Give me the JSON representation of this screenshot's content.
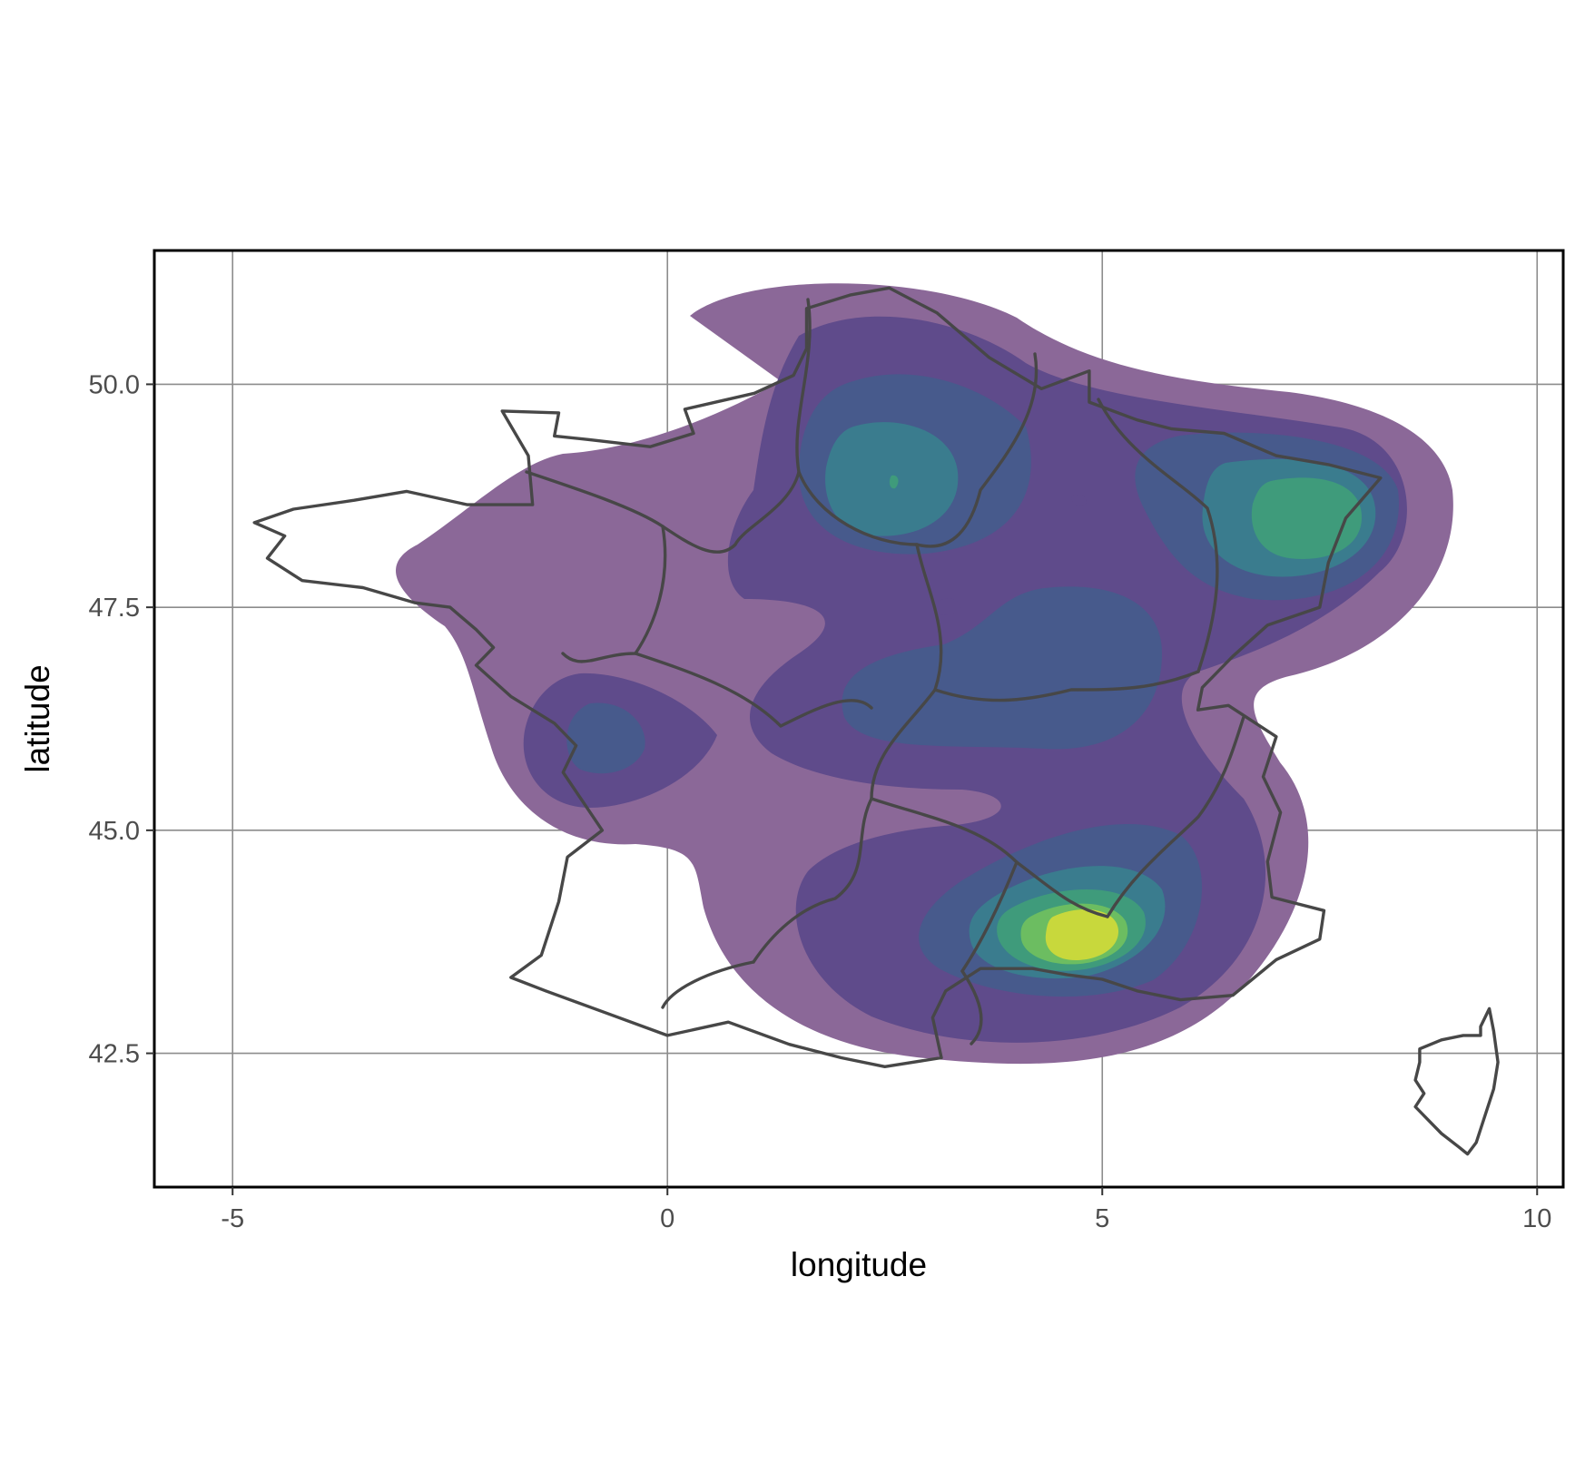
{
  "chart_data": {
    "type": "density-contour-map",
    "title": "",
    "xlabel": "longitude",
    "ylabel": "latitude",
    "xlim": [
      -5.9,
      10.3
    ],
    "ylim": [
      41.0,
      51.5
    ],
    "x_ticks": [
      -5,
      0,
      5,
      10
    ],
    "x_tick_labels": [
      "-5",
      "0",
      "5",
      "10"
    ],
    "y_ticks": [
      42.5,
      45.0,
      47.5,
      50.0
    ],
    "y_tick_labels": [
      "42.5",
      "45.0",
      "47.5",
      "50.0"
    ],
    "grid": true,
    "legend": "none",
    "colors": {
      "palette": [
        "#8b6898",
        "#5f4b8b",
        "#475a8c",
        "#3a7c8e",
        "#3f9b7b",
        "#6cbd61",
        "#c8d83c"
      ],
      "outline": "#474747",
      "panel_border": "#000000",
      "grid": "#8c8c8c"
    },
    "density_peaks": [
      {
        "lon": 4.8,
        "lat": 43.7,
        "levels": 7
      },
      {
        "lon": 7.2,
        "lat": 48.5,
        "levels": 5
      },
      {
        "lon": 2.6,
        "lat": 48.8,
        "levels": 4
      },
      {
        "lon": 4.9,
        "lat": 46.9,
        "levels": 3
      },
      {
        "lon": -0.7,
        "lat": 45.9,
        "levels": 3
      }
    ],
    "outlines": [
      {
        "name": "France mainland",
        "points": [
          [
            2.55,
            51.08
          ],
          [
            2.1,
            51.0
          ],
          [
            1.6,
            50.85
          ],
          [
            1.6,
            50.4
          ],
          [
            1.45,
            50.1
          ],
          [
            1.0,
            49.9
          ],
          [
            0.2,
            49.72
          ],
          [
            0.3,
            49.45
          ],
          [
            -0.2,
            49.3
          ],
          [
            -0.9,
            49.38
          ],
          [
            -1.3,
            49.42
          ],
          [
            -1.25,
            49.68
          ],
          [
            -1.9,
            49.7
          ],
          [
            -1.6,
            49.2
          ],
          [
            -1.55,
            48.65
          ],
          [
            -2.3,
            48.65
          ],
          [
            -3.0,
            48.8
          ],
          [
            -3.6,
            48.7
          ],
          [
            -4.3,
            48.6
          ],
          [
            -4.75,
            48.45
          ],
          [
            -4.4,
            48.3
          ],
          [
            -4.6,
            48.05
          ],
          [
            -4.2,
            47.8
          ],
          [
            -3.5,
            47.72
          ],
          [
            -2.9,
            47.55
          ],
          [
            -2.5,
            47.5
          ],
          [
            -2.2,
            47.25
          ],
          [
            -2.0,
            47.05
          ],
          [
            -2.2,
            46.85
          ],
          [
            -1.8,
            46.5
          ],
          [
            -1.3,
            46.2
          ],
          [
            -1.05,
            45.95
          ],
          [
            -1.2,
            45.65
          ],
          [
            -0.75,
            45.0
          ],
          [
            -1.15,
            44.7
          ],
          [
            -1.25,
            44.2
          ],
          [
            -1.45,
            43.6
          ],
          [
            -1.8,
            43.35
          ],
          [
            -1.4,
            43.2
          ],
          [
            -0.7,
            42.95
          ],
          [
            0.0,
            42.7
          ],
          [
            0.7,
            42.85
          ],
          [
            1.4,
            42.6
          ],
          [
            2.0,
            42.45
          ],
          [
            2.5,
            42.35
          ],
          [
            3.15,
            42.45
          ],
          [
            3.05,
            42.9
          ],
          [
            3.2,
            43.2
          ],
          [
            3.6,
            43.45
          ],
          [
            4.2,
            43.45
          ],
          [
            4.6,
            43.38
          ],
          [
            5.0,
            43.33
          ],
          [
            5.4,
            43.2
          ],
          [
            5.9,
            43.1
          ],
          [
            6.5,
            43.15
          ],
          [
            7.0,
            43.55
          ],
          [
            7.5,
            43.78
          ],
          [
            7.55,
            44.1
          ],
          [
            6.95,
            44.25
          ],
          [
            6.9,
            44.65
          ],
          [
            7.05,
            45.2
          ],
          [
            6.85,
            45.6
          ],
          [
            7.0,
            46.05
          ],
          [
            6.45,
            46.4
          ],
          [
            6.1,
            46.35
          ],
          [
            6.15,
            46.6
          ],
          [
            6.5,
            46.95
          ],
          [
            6.9,
            47.3
          ],
          [
            7.5,
            47.5
          ],
          [
            7.6,
            48.0
          ],
          [
            7.8,
            48.5
          ],
          [
            8.2,
            48.95
          ],
          [
            7.6,
            49.1
          ],
          [
            7.0,
            49.2
          ],
          [
            6.4,
            49.45
          ],
          [
            5.8,
            49.5
          ],
          [
            5.4,
            49.6
          ],
          [
            4.85,
            49.8
          ],
          [
            4.85,
            50.15
          ],
          [
            4.3,
            49.95
          ],
          [
            3.7,
            50.3
          ],
          [
            3.1,
            50.8
          ],
          [
            2.55,
            51.08
          ]
        ]
      },
      {
        "name": "Corsica",
        "points": [
          [
            9.45,
            43.0
          ],
          [
            9.35,
            42.8
          ],
          [
            9.35,
            42.7
          ],
          [
            9.15,
            42.7
          ],
          [
            8.9,
            42.65
          ],
          [
            8.65,
            42.55
          ],
          [
            8.65,
            42.4
          ],
          [
            8.6,
            42.2
          ],
          [
            8.7,
            42.05
          ],
          [
            8.6,
            41.9
          ],
          [
            8.8,
            41.7
          ],
          [
            8.9,
            41.6
          ],
          [
            9.1,
            41.45
          ],
          [
            9.2,
            41.37
          ],
          [
            9.3,
            41.5
          ],
          [
            9.4,
            41.8
          ],
          [
            9.5,
            42.1
          ],
          [
            9.55,
            42.4
          ],
          [
            9.5,
            42.75
          ],
          [
            9.45,
            43.0
          ]
        ]
      },
      {
        "name": "Region boundaries",
        "points": []
      }
    ]
  }
}
